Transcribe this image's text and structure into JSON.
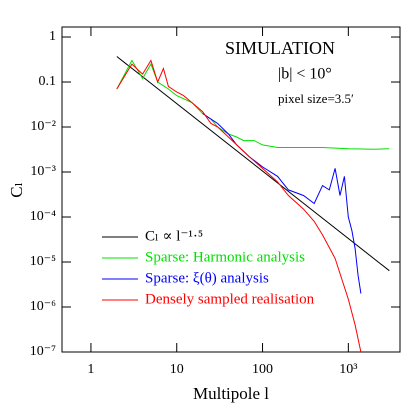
{
  "chart_data": {
    "type": "line",
    "log_x": true,
    "log_y": true,
    "xlabel": "Multipole l",
    "ylabel": "Cₗ",
    "annotations": [
      "SIMULATION",
      "|b| < 10°",
      "pixel size=3.5′"
    ],
    "xlim": [
      0.46,
      4000
    ],
    "ylim": [
      1e-07,
      1.67
    ],
    "xticks": [
      1,
      10,
      100,
      {
        "value": 1000,
        "label": "10³"
      }
    ],
    "yticks": [
      {
        "value": 1e-07,
        "label": "10⁻⁷"
      },
      {
        "value": 1e-06,
        "label": "10⁻⁶"
      },
      {
        "value": 1e-05,
        "label": "10⁻⁵"
      },
      {
        "value": 0.0001,
        "label": "10⁻⁴"
      },
      {
        "value": 0.001,
        "label": "10⁻³"
      },
      {
        "value": 0.01,
        "label": "10⁻²"
      },
      0.1,
      1
    ],
    "legend": "lower left",
    "series": [
      {
        "name": "Cₗ ∝ l⁻¹·⁵",
        "color": "#000000",
        "x": [
          2,
          3000
        ],
        "values": [
          0.37,
          6.4e-06
        ]
      },
      {
        "name": "Sparse: Harmonic analysis",
        "color": "#00e000",
        "x": [
          2,
          3,
          4,
          5,
          6,
          8,
          10,
          15,
          20,
          25,
          30,
          40,
          50,
          60,
          80,
          100,
          150,
          200,
          300,
          500,
          1000,
          2000,
          3000
        ],
        "values": [
          0.07,
          0.3,
          0.12,
          0.25,
          0.1,
          0.07,
          0.05,
          0.035,
          0.02,
          0.015,
          0.01,
          0.007,
          0.006,
          0.005,
          0.005,
          0.004,
          0.0035,
          0.0035,
          0.0035,
          0.0035,
          0.0033,
          0.0032,
          0.0033
        ]
      },
      {
        "name": "Sparse: ξ(θ) analysis",
        "color": "#0000ff",
        "x": [
          20,
          25,
          30,
          40,
          50,
          70,
          100,
          150,
          200,
          300,
          400,
          500,
          600,
          700,
          800,
          900,
          1000,
          1100,
          1200,
          1300,
          1400
        ],
        "values": [
          0.02,
          0.015,
          0.012,
          0.007,
          0.004,
          0.0022,
          0.0013,
          0.0008,
          0.0004,
          0.0003,
          0.0002,
          0.0005,
          0.0004,
          0.0012,
          0.0003,
          0.0008,
          0.0001,
          5e-05,
          2e-05,
          5e-06,
          2e-06
        ]
      },
      {
        "name": "Densely sampled realisation",
        "color": "#ff0000",
        "x": [
          2,
          3,
          4,
          5,
          6,
          7,
          8,
          10,
          12,
          15,
          20,
          25,
          30,
          40,
          50,
          70,
          100,
          150,
          200,
          300,
          400,
          500,
          700,
          1000,
          1200,
          1400
        ],
        "values": [
          0.07,
          0.25,
          0.15,
          0.3,
          0.1,
          0.2,
          0.08,
          0.06,
          0.05,
          0.035,
          0.022,
          0.012,
          0.01,
          0.006,
          0.004,
          0.0022,
          0.0012,
          0.0006,
          0.0003,
          0.00015,
          8e-05,
          4e-05,
          1.2e-05,
          1.5e-06,
          4e-07,
          1e-07
        ]
      }
    ]
  }
}
